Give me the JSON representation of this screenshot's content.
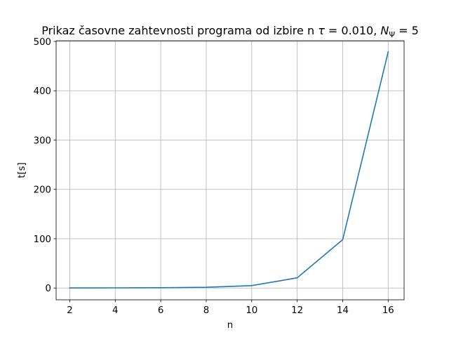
{
  "chart_data": {
    "type": "line",
    "title": {
      "prefix": "Prikaz časovne zahtevnosti programa od izbire n ",
      "tau_symbol": "τ",
      "tau_eq": " = 0.010, ",
      "n_symbol": "N",
      "psi_sub": "Ψ",
      "n_eq": " = 5"
    },
    "xlabel": "n",
    "ylabel": "t[s]",
    "xlim": [
      1.4,
      16.7
    ],
    "ylim": [
      -23.9,
      501.5
    ],
    "xticks": [
      2,
      4,
      6,
      8,
      10,
      12,
      14,
      16
    ],
    "xtick_labels": [
      "2",
      "4",
      "6",
      "8",
      "10",
      "12",
      "14",
      "16"
    ],
    "yticks": [
      0,
      100,
      200,
      300,
      400,
      500
    ],
    "ytick_labels": [
      "0",
      "100",
      "200",
      "300",
      "400",
      "500"
    ],
    "grid": true,
    "series": [
      {
        "color": "#1f77b4",
        "x": [
          2,
          4,
          6,
          8,
          10,
          12,
          14,
          16
        ],
        "y": [
          0.1,
          0.3,
          0.6,
          1.5,
          4.8,
          20.7,
          98,
          479
        ]
      }
    ]
  }
}
